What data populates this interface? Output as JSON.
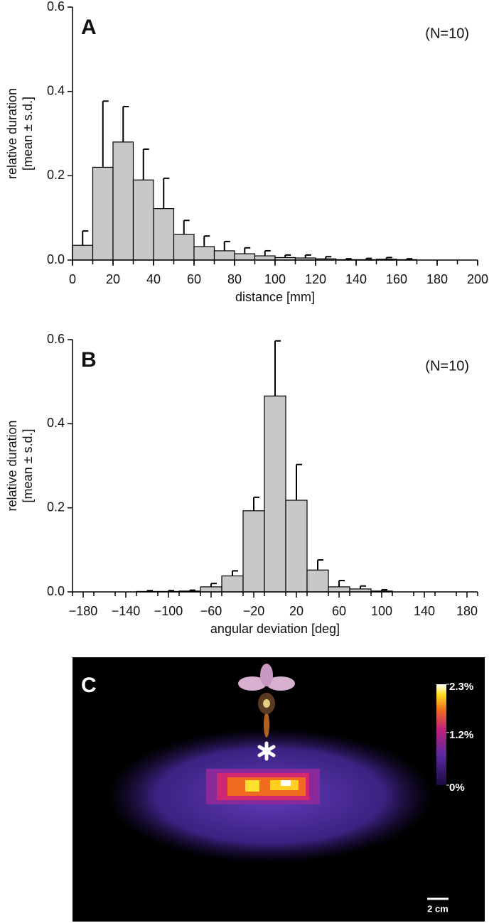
{
  "chart_data": [
    {
      "type": "histogram",
      "panel_label": "A",
      "annotation": "(N=10)",
      "ylabel": [
        "relative duration",
        "[mean ± s.d.]"
      ],
      "xlabel": "distance [mm]",
      "bins": [
        0,
        10,
        20,
        30,
        40,
        50,
        60,
        70,
        80,
        90,
        100,
        110,
        120,
        130,
        140,
        150,
        160,
        170,
        180,
        190,
        200
      ],
      "values": [
        0.035,
        0.22,
        0.28,
        0.19,
        0.122,
        0.061,
        0.032,
        0.022,
        0.015,
        0.01,
        0.006,
        0.005,
        0.003,
        0.001,
        0.001,
        0.002,
        0.001,
        0,
        0,
        0
      ],
      "errors": [
        0.034,
        0.157,
        0.084,
        0.073,
        0.072,
        0.033,
        0.025,
        0.022,
        0.014,
        0.012,
        0.006,
        0.007,
        0.005,
        0.002,
        0.003,
        0.004,
        0.002,
        0,
        0,
        0
      ],
      "color": "#c8c8c8",
      "xlim": [
        0,
        200
      ],
      "ylim": [
        0,
        0.6
      ],
      "xticks": [
        0,
        20,
        40,
        60,
        80,
        100,
        120,
        140,
        160,
        180,
        200
      ],
      "yticks": [
        {
          "value": 0,
          "label": "0.0"
        },
        0.2,
        0.4,
        0.6
      ]
    },
    {
      "type": "histogram",
      "panel_label": "B",
      "annotation": "(N=10)",
      "ylabel": [
        "relative duration",
        "[mean ± s.d.]"
      ],
      "xlabel": "angular deviation [deg]",
      "bins": [
        -190,
        -170,
        -150,
        -130,
        -110,
        -90,
        -70,
        -50,
        -30,
        -10,
        10,
        30,
        50,
        70,
        90,
        110,
        130,
        150,
        170,
        190
      ],
      "values": [
        0,
        0,
        0,
        0.001,
        0.001,
        0.002,
        0.012,
        0.038,
        0.193,
        0.466,
        0.218,
        0.052,
        0.012,
        0.007,
        0.002,
        0,
        0,
        0,
        0
      ],
      "errors": [
        0,
        0,
        0,
        0.002,
        0.002,
        0.002,
        0.008,
        0.012,
        0.032,
        0.131,
        0.085,
        0.024,
        0.015,
        0.007,
        0.003,
        0,
        0,
        0,
        0
      ],
      "color": "#c8c8c8",
      "xlim": [
        -190,
        190
      ],
      "ylim": [
        0,
        0.6
      ],
      "xticks": [
        {
          "value": -180,
          "label": "−180"
        },
        {
          "value": -140,
          "label": "−140"
        },
        {
          "value": -100,
          "label": "−100"
        },
        {
          "value": -60,
          "label": "−60"
        },
        {
          "value": -20,
          "label": "−20"
        },
        20,
        60,
        100,
        140,
        180
      ],
      "yticks": [
        {
          "value": 0,
          "label": "0.0"
        },
        0.2,
        0.4,
        0.6
      ]
    },
    {
      "type": "heatmap",
      "panel_label": "C",
      "colorbar_lim": [
        0,
        2.3
      ],
      "colorbar_ticks": [
        {
          "value": 2.3,
          "label": "2.3%"
        },
        {
          "value": 1.2,
          "label": "1.2%"
        },
        {
          "value": 0,
          "label": "0%"
        }
      ],
      "scale_bar": "2 cm"
    }
  ]
}
